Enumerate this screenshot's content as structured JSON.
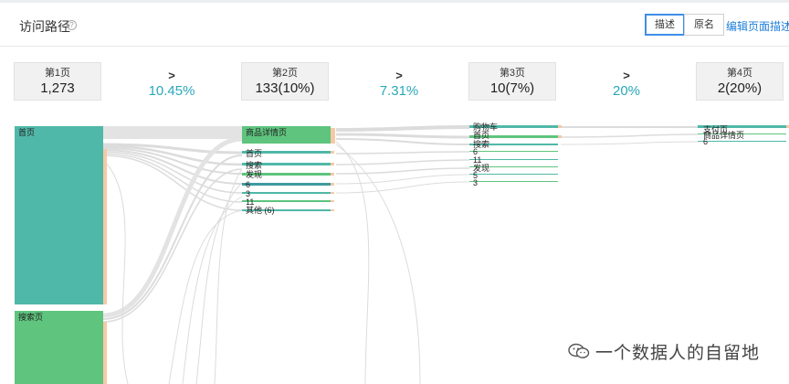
{
  "header": {
    "title": "访问路径",
    "help_icon": "question-circle-icon",
    "toggle": {
      "options": [
        "描述",
        "原名"
      ],
      "selected": "描述"
    },
    "edit_link": "编辑页面描述"
  },
  "steps": [
    {
      "label": "第1页",
      "value": "1,273"
    },
    {
      "label": "第2页",
      "value": "133(10%)"
    },
    {
      "label": "第3页",
      "value": "10(7%)"
    },
    {
      "label": "第4页",
      "value": "2(20%)"
    }
  ],
  "transitions": [
    {
      "symbol": ">",
      "rate": "10.45%"
    },
    {
      "symbol": ">",
      "rate": "7.31%"
    },
    {
      "symbol": ">",
      "rate": "20%"
    }
  ],
  "columns": {
    "col1": [
      "首页",
      "搜索页"
    ],
    "col2": [
      "商品详情页",
      "首页",
      "搜索",
      "发现",
      "6",
      "3",
      "11",
      "其他 (6)"
    ],
    "col3": [
      "购物车",
      "首页",
      "搜索",
      "6",
      "11",
      "发现",
      "5",
      "3"
    ],
    "col4": [
      "支付页",
      "商品详情页",
      "6"
    ]
  },
  "colors": {
    "teal": "#50b8a8",
    "green": "#5ec47e",
    "link": "#dcdcdc",
    "accent": "#2aa8b8"
  },
  "watermark": {
    "icon": "wechat-icon",
    "text": "一个数据人的自留地"
  }
}
